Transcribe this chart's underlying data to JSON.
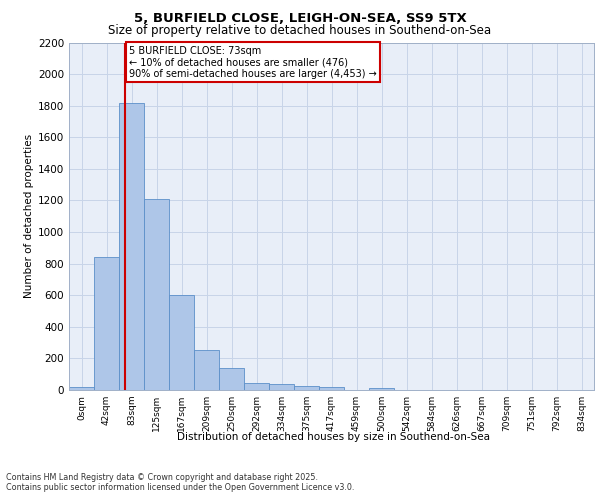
{
  "title1": "5, BURFIELD CLOSE, LEIGH-ON-SEA, SS9 5TX",
  "title2": "Size of property relative to detached houses in Southend-on-Sea",
  "xlabel": "Distribution of detached houses by size in Southend-on-Sea",
  "ylabel": "Number of detached properties",
  "bar_labels": [
    "0sqm",
    "42sqm",
    "83sqm",
    "125sqm",
    "167sqm",
    "209sqm",
    "250sqm",
    "292sqm",
    "334sqm",
    "375sqm",
    "417sqm",
    "459sqm",
    "500sqm",
    "542sqm",
    "584sqm",
    "626sqm",
    "667sqm",
    "709sqm",
    "751sqm",
    "792sqm",
    "834sqm"
  ],
  "bar_values": [
    20,
    840,
    1820,
    1210,
    600,
    255,
    140,
    42,
    38,
    28,
    18,
    0,
    14,
    0,
    0,
    0,
    0,
    0,
    0,
    0,
    0
  ],
  "bar_color": "#aec6e8",
  "bar_edge_color": "#5b8fc9",
  "grid_color": "#c8d4e8",
  "background_color": "#e8eef8",
  "vline_color": "#cc0000",
  "annotation_text": "5 BURFIELD CLOSE: 73sqm\n← 10% of detached houses are smaller (476)\n90% of semi-detached houses are larger (4,453) →",
  "annotation_box_color": "#cc0000",
  "ylim": [
    0,
    2200
  ],
  "yticks": [
    0,
    200,
    400,
    600,
    800,
    1000,
    1200,
    1400,
    1600,
    1800,
    2000,
    2200
  ],
  "footer1": "Contains HM Land Registry data © Crown copyright and database right 2025.",
  "footer2": "Contains public sector information licensed under the Open Government Licence v3.0."
}
